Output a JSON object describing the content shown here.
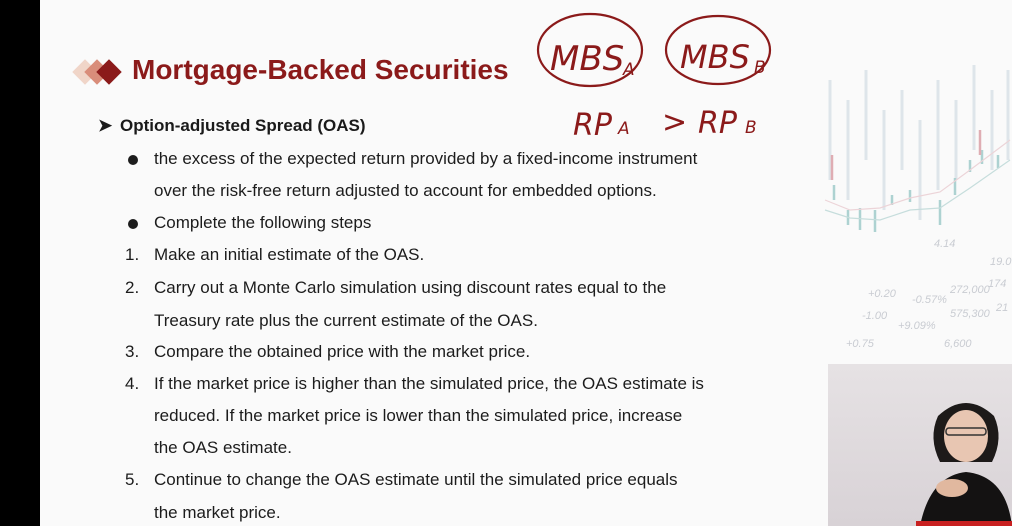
{
  "title": "Mortgage-Backed Securities",
  "section": {
    "heading": "Option-adjusted Spread (OAS)",
    "bullets": [
      {
        "lines": [
          "the excess of the expected return provided by a fixed-income instrument",
          "over the risk-free return adjusted to account for embedded options."
        ]
      },
      {
        "lines": [
          "Complete the following steps"
        ]
      }
    ],
    "steps": [
      {
        "num": "1.",
        "lines": [
          "Make an initial estimate of the OAS."
        ]
      },
      {
        "num": "2.",
        "lines": [
          "Carry out a Monte Carlo simulation using discount rates equal to the",
          "Treasury rate plus the current estimate of the OAS."
        ]
      },
      {
        "num": "3.",
        "lines": [
          "Compare the obtained price with the market price."
        ]
      },
      {
        "num": "4.",
        "lines": [
          "If the market price is higher than the simulated price, the OAS estimate is",
          "reduced. If the market price is lower than the simulated price, increase",
          "the OAS estimate."
        ]
      },
      {
        "num": "5.",
        "lines": [
          "Continue to change the OAS estimate until the simulated price equals",
          "the market price."
        ]
      }
    ]
  },
  "handwriting": {
    "mbs_a": "MBS",
    "mbs_a_sub": "A",
    "mbs_b": "MBS",
    "mbs_b_sub": "B",
    "comparison": "RP",
    "rp_a_sub": "A",
    "operator": ">",
    "rp_b_sub": "B"
  },
  "background_chart_labels": [
    "4.14",
    "19.0",
    "174",
    "21",
    "+0.20",
    "-1.00",
    "+0.75",
    "-0.57%",
    "+9.09%",
    "575,300",
    "272,000",
    "6,600"
  ],
  "colors": {
    "title": "#8b1a1a",
    "ink": "#8b1a1a",
    "text": "#1c1c1c"
  },
  "icons": {
    "title_marker": "diamond-icons",
    "heading_marker": "arrowhead-icon",
    "bullet": "filled-circle-icon"
  }
}
